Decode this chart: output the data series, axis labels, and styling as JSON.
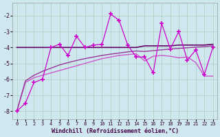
{
  "xlabel": "Windchill (Refroidissement éolien,°C)",
  "background_color": "#cfe8ef",
  "grid_color": "#aaccbb",
  "xlim": [
    -0.5,
    23.5
  ],
  "ylim": [
    -8.5,
    -1.2
  ],
  "yticks": [
    -8,
    -7,
    -6,
    -5,
    -4,
    -3,
    -2
  ],
  "xticks": [
    0,
    1,
    2,
    3,
    4,
    5,
    6,
    7,
    8,
    9,
    10,
    11,
    12,
    13,
    14,
    15,
    16,
    17,
    18,
    19,
    20,
    21,
    22,
    23
  ],
  "x_data": [
    0,
    1,
    2,
    3,
    4,
    5,
    6,
    7,
    8,
    9,
    10,
    11,
    12,
    13,
    14,
    15,
    16,
    17,
    18,
    19,
    20,
    21,
    22,
    23
  ],
  "y_main": [
    -8.0,
    -7.5,
    -6.2,
    -6.0,
    -4.0,
    -3.8,
    -4.5,
    -3.3,
    -4.0,
    -3.85,
    -3.8,
    -1.9,
    -2.3,
    -3.85,
    -4.6,
    -4.6,
    -5.6,
    -2.5,
    -4.1,
    -3.0,
    -4.8,
    -4.15,
    -5.7,
    -4.0
  ],
  "y_flat": [
    -4.0,
    -4.0,
    -4.0,
    -4.0,
    -4.0,
    -4.0,
    -4.0,
    -4.0,
    -4.0,
    -4.0,
    -4.0,
    -4.0,
    -4.0,
    -4.0,
    -4.0,
    -3.9,
    -3.9,
    -3.9,
    -3.9,
    -3.85,
    -3.85,
    -3.85,
    -3.85,
    -3.8
  ],
  "y_smooth1": [
    -8.0,
    -6.2,
    -5.9,
    -5.75,
    -5.6,
    -5.45,
    -5.3,
    -5.15,
    -5.0,
    -4.85,
    -4.7,
    -4.6,
    -4.5,
    -4.45,
    -4.4,
    -4.85,
    -4.55,
    -4.5,
    -4.55,
    -4.65,
    -4.6,
    -4.95,
    -5.8,
    -5.8
  ],
  "y_smooth2": [
    -8.0,
    -6.1,
    -5.75,
    -5.5,
    -5.3,
    -5.1,
    -4.95,
    -4.82,
    -4.7,
    -4.6,
    -4.5,
    -4.42,
    -4.35,
    -4.28,
    -4.22,
    -4.25,
    -4.2,
    -4.15,
    -4.1,
    -4.06,
    -4.02,
    -3.98,
    -3.95,
    -3.9
  ]
}
